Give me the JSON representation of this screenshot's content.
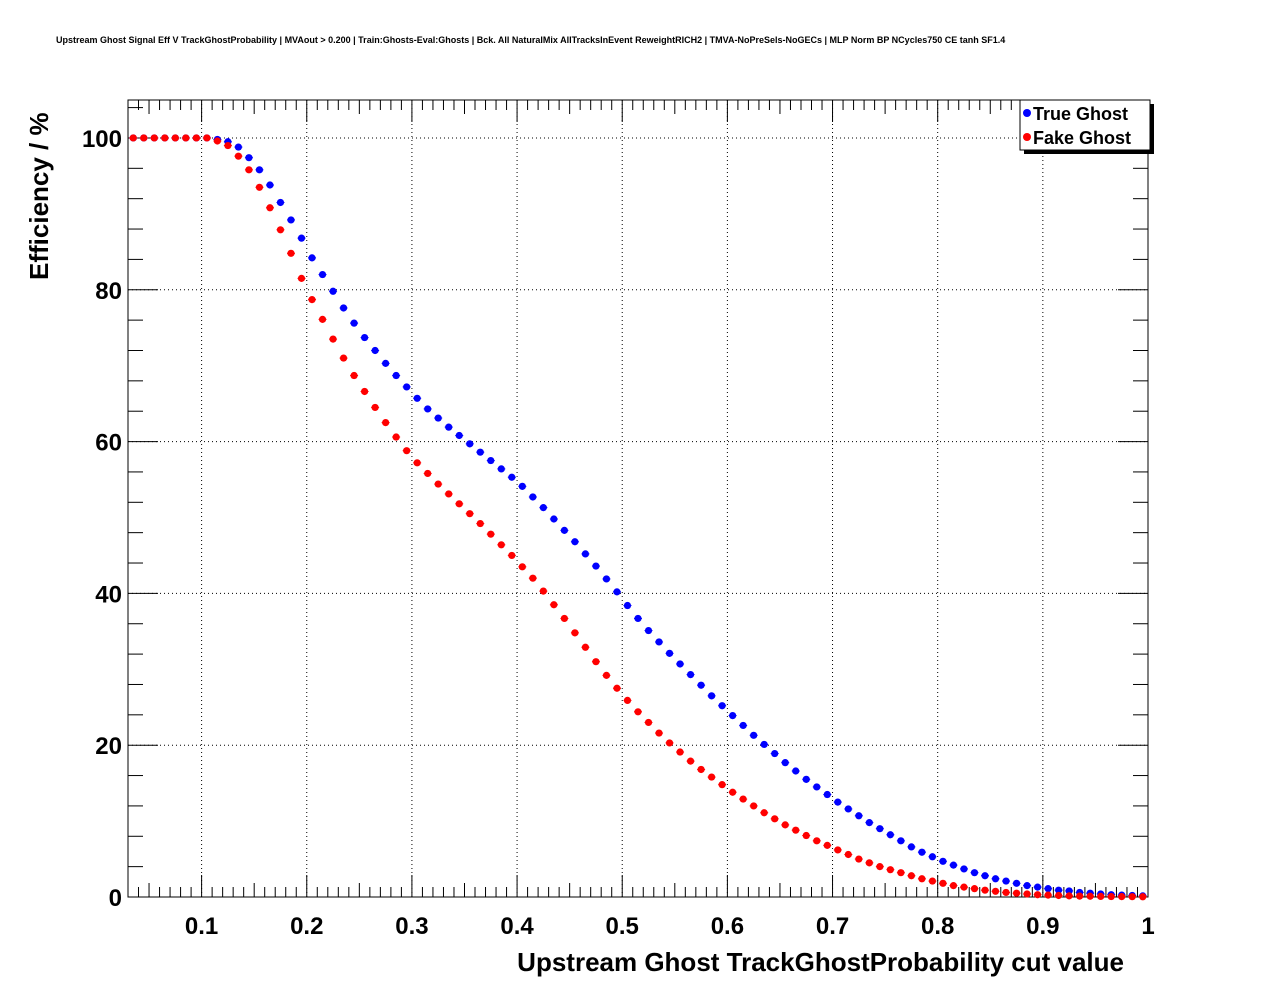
{
  "chart_data": {
    "type": "scatter",
    "title": "Upstream Ghost Signal Eff V TrackGhostProbability | MVAout > 0.200 | Train:Ghosts-Eval:Ghosts | Bck. All NaturalMix AllTracksInEvent ReweightRICH2 | TMVA-NoPreSels-NoGECs | MLP Norm BP NCycles750 CE tanh SF1.4",
    "xlabel": "Upstream Ghost TrackGhostProbability cut value",
    "ylabel": "Efficiency / %",
    "xlim": [
      0.03,
      1.0
    ],
    "ylim": [
      0,
      105
    ],
    "xticks": [
      0.1,
      0.2,
      0.3,
      0.4,
      0.5,
      0.6,
      0.7,
      0.8,
      0.9,
      1.0
    ],
    "xtick_labels": [
      "0.1",
      "0.2",
      "0.3",
      "0.4",
      "0.5",
      "0.6",
      "0.7",
      "0.8",
      "0.9",
      "1"
    ],
    "yticks": [
      0,
      20,
      40,
      60,
      80,
      100
    ],
    "ytick_labels": [
      "0",
      "20",
      "40",
      "60",
      "80",
      "100"
    ],
    "grid": true,
    "legend_position": "top-right",
    "x": [
      0.035,
      0.045,
      0.055,
      0.065,
      0.075,
      0.085,
      0.095,
      0.105,
      0.115,
      0.125,
      0.135,
      0.145,
      0.155,
      0.165,
      0.175,
      0.185,
      0.195,
      0.205,
      0.215,
      0.225,
      0.235,
      0.245,
      0.255,
      0.265,
      0.275,
      0.285,
      0.295,
      0.305,
      0.315,
      0.325,
      0.335,
      0.345,
      0.355,
      0.365,
      0.375,
      0.385,
      0.395,
      0.405,
      0.415,
      0.425,
      0.435,
      0.445,
      0.455,
      0.465,
      0.475,
      0.485,
      0.495,
      0.505,
      0.515,
      0.525,
      0.535,
      0.545,
      0.555,
      0.565,
      0.575,
      0.585,
      0.595,
      0.605,
      0.615,
      0.625,
      0.635,
      0.645,
      0.655,
      0.665,
      0.675,
      0.685,
      0.695,
      0.705,
      0.715,
      0.725,
      0.735,
      0.745,
      0.755,
      0.765,
      0.775,
      0.785,
      0.795,
      0.805,
      0.815,
      0.825,
      0.835,
      0.845,
      0.855,
      0.865,
      0.875,
      0.885,
      0.895,
      0.905,
      0.915,
      0.925,
      0.935,
      0.945,
      0.955,
      0.965,
      0.975,
      0.985,
      0.995
    ],
    "series": [
      {
        "name": "True Ghost",
        "color": "#0000ff",
        "values": [
          100,
          100,
          100,
          100,
          100,
          100,
          100,
          100,
          99.8,
          99.5,
          98.8,
          97.4,
          95.8,
          93.8,
          91.5,
          89.2,
          86.8,
          84.2,
          82.0,
          79.8,
          77.6,
          75.6,
          73.7,
          72.0,
          70.3,
          68.7,
          67.2,
          65.7,
          64.3,
          63.1,
          61.9,
          60.8,
          59.7,
          58.6,
          57.5,
          56.4,
          55.3,
          54.1,
          52.7,
          51.3,
          49.8,
          48.3,
          46.8,
          45.2,
          43.6,
          41.9,
          40.2,
          38.4,
          36.7,
          35.1,
          33.6,
          32.1,
          30.7,
          29.3,
          27.9,
          26.5,
          25.2,
          23.9,
          22.6,
          21.3,
          20.1,
          18.9,
          17.7,
          16.6,
          15.5,
          14.5,
          13.5,
          12.5,
          11.6,
          10.7,
          9.8,
          9.0,
          8.2,
          7.4,
          6.6,
          5.9,
          5.3,
          4.7,
          4.2,
          3.7,
          3.2,
          2.8,
          2.4,
          2.1,
          1.8,
          1.5,
          1.3,
          1.1,
          0.9,
          0.8,
          0.6,
          0.5,
          0.4,
          0.3,
          0.25,
          0.2,
          0.15
        ]
      },
      {
        "name": "Fake Ghost",
        "color": "#ff0000",
        "values": [
          100,
          100,
          100,
          100,
          100,
          100,
          100,
          100,
          99.6,
          99.0,
          97.6,
          95.8,
          93.5,
          90.8,
          87.9,
          84.8,
          81.5,
          78.7,
          76.1,
          73.5,
          71.0,
          68.7,
          66.6,
          64.5,
          62.5,
          60.6,
          58.8,
          57.2,
          55.8,
          54.4,
          53.1,
          51.8,
          50.5,
          49.2,
          47.8,
          46.4,
          45.0,
          43.5,
          42.0,
          40.3,
          38.5,
          36.7,
          34.8,
          32.9,
          31.0,
          29.2,
          27.5,
          25.9,
          24.4,
          23.0,
          21.6,
          20.3,
          19.1,
          17.9,
          16.8,
          15.8,
          14.8,
          13.8,
          12.9,
          12.0,
          11.1,
          10.3,
          9.5,
          8.8,
          8.1,
          7.4,
          6.8,
          6.2,
          5.6,
          5.0,
          4.5,
          4.0,
          3.6,
          3.2,
          2.8,
          2.4,
          2.1,
          1.8,
          1.5,
          1.3,
          1.1,
          0.9,
          0.75,
          0.6,
          0.5,
          0.4,
          0.3,
          0.25,
          0.2,
          0.15,
          0.12,
          0.1,
          0.08,
          0.06,
          0.05,
          0.04,
          0.03
        ]
      }
    ]
  }
}
